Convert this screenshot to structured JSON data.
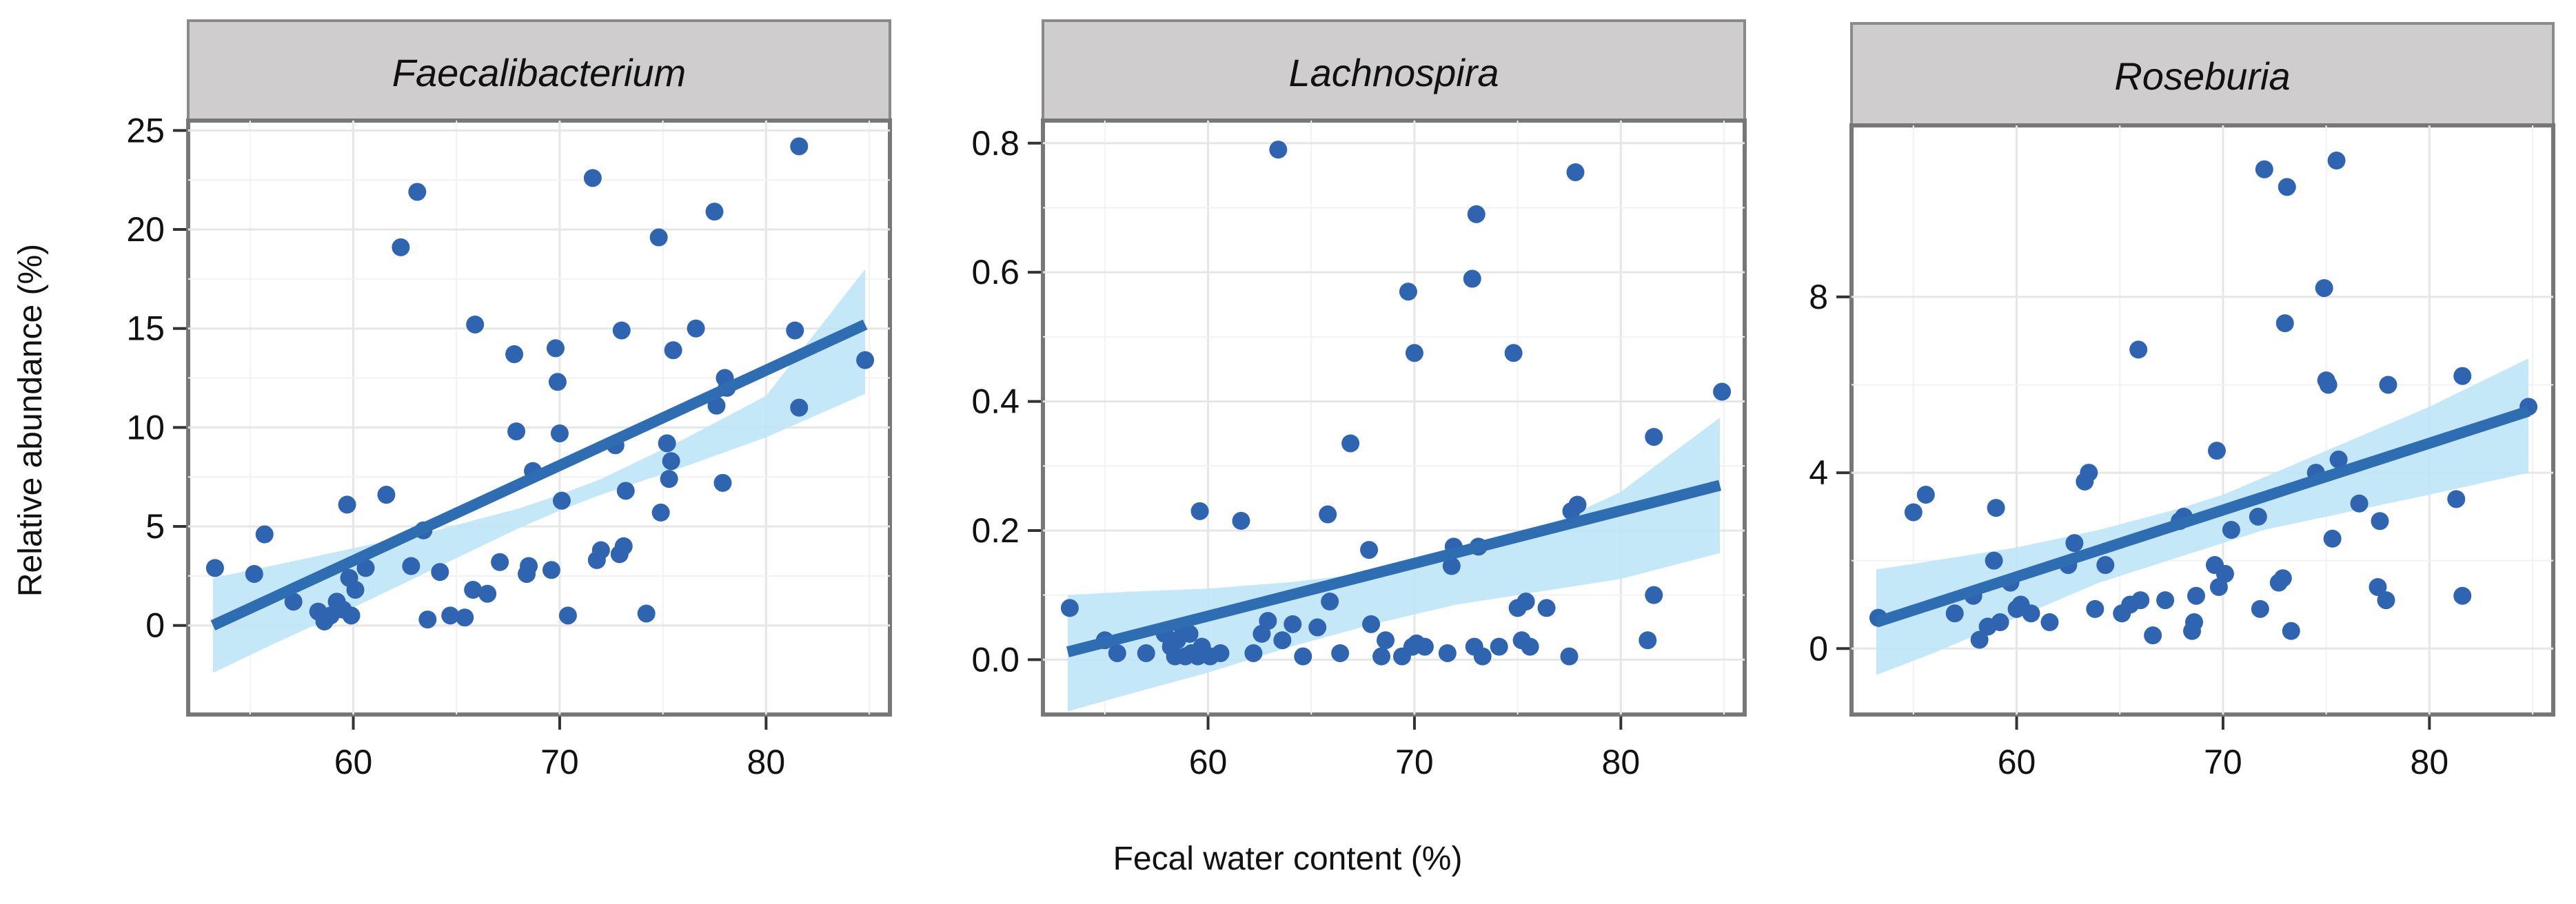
{
  "chart_data": {
    "type": "scatter",
    "xlabel": "Fecal water content (%)",
    "ylabel": "Relative abundance (%)",
    "panels": [
      {
        "title": "Faecalibacterium",
        "xlim": [
          52,
          86
        ],
        "ylim": [
          -4.5,
          25.5
        ],
        "xticks": [
          60,
          70,
          80
        ],
        "yticks": [
          0,
          5,
          10,
          15,
          20,
          25
        ],
        "fit": {
          "x": [
            53.2,
            84.8
          ],
          "y": [
            0.0,
            15.2
          ]
        },
        "band": {
          "x": [
            53.2,
            56,
            60,
            64,
            68,
            70,
            72,
            76,
            80,
            84.8
          ],
          "lower": [
            -2.4,
            -1.0,
            0.9,
            2.9,
            4.9,
            5.8,
            6.6,
            8.0,
            9.5,
            11.7
          ],
          "upper": [
            2.4,
            3.0,
            3.9,
            4.8,
            5.9,
            6.6,
            7.4,
            9.4,
            11.6,
            18.0
          ]
        },
        "points": [
          [
            53.3,
            2.9
          ],
          [
            55.2,
            2.6
          ],
          [
            55.7,
            4.6
          ],
          [
            57.1,
            1.2
          ],
          [
            58.3,
            0.7
          ],
          [
            58.6,
            0.2
          ],
          [
            58.9,
            0.5
          ],
          [
            59.2,
            1.2
          ],
          [
            59.5,
            0.8
          ],
          [
            59.7,
            6.1
          ],
          [
            59.8,
            2.4
          ],
          [
            59.9,
            0.5
          ],
          [
            60.1,
            1.8
          ],
          [
            60.6,
            2.9
          ],
          [
            61.6,
            6.6
          ],
          [
            62.3,
            19.1
          ],
          [
            62.8,
            3.0
          ],
          [
            63.1,
            21.9
          ],
          [
            63.4,
            4.8
          ],
          [
            63.6,
            0.3
          ],
          [
            64.2,
            2.7
          ],
          [
            64.7,
            0.5
          ],
          [
            65.4,
            0.4
          ],
          [
            65.8,
            1.8
          ],
          [
            65.9,
            15.2
          ],
          [
            66.5,
            1.6
          ],
          [
            67.1,
            3.2
          ],
          [
            67.8,
            13.7
          ],
          [
            67.9,
            9.8
          ],
          [
            68.4,
            2.6
          ],
          [
            68.5,
            3.0
          ],
          [
            68.7,
            7.8
          ],
          [
            69.6,
            2.8
          ],
          [
            69.8,
            14.0
          ],
          [
            69.9,
            12.3
          ],
          [
            70.0,
            9.7
          ],
          [
            70.1,
            6.3
          ],
          [
            70.4,
            0.5
          ],
          [
            71.6,
            22.6
          ],
          [
            71.8,
            3.3
          ],
          [
            72.0,
            3.8
          ],
          [
            72.7,
            9.1
          ],
          [
            72.9,
            3.6
          ],
          [
            73.0,
            14.9
          ],
          [
            73.1,
            4.0
          ],
          [
            73.2,
            6.8
          ],
          [
            74.2,
            0.6
          ],
          [
            74.8,
            19.6
          ],
          [
            74.9,
            5.7
          ],
          [
            75.2,
            9.2
          ],
          [
            75.3,
            7.4
          ],
          [
            75.4,
            8.3
          ],
          [
            75.5,
            13.9
          ],
          [
            76.6,
            15.0
          ],
          [
            77.5,
            20.9
          ],
          [
            77.6,
            11.1
          ],
          [
            77.9,
            7.2
          ],
          [
            78.0,
            12.5
          ],
          [
            78.1,
            12.0
          ],
          [
            81.4,
            14.9
          ],
          [
            81.6,
            24.2
          ],
          [
            81.6,
            11.0
          ],
          [
            84.8,
            13.4
          ]
        ]
      },
      {
        "title": "Lachnospira",
        "xlim": [
          52,
          86
        ],
        "ylim": [
          -0.085,
          0.835
        ],
        "xticks": [
          60,
          70,
          80
        ],
        "yticks": [
          0.0,
          0.2,
          0.4,
          0.6,
          0.8
        ],
        "ytick_labels": [
          "0.0",
          "0.2",
          "0.4",
          "0.6",
          "0.8"
        ],
        "fit": {
          "x": [
            53.2,
            84.8
          ],
          "y": [
            0.012,
            0.27
          ]
        },
        "band": {
          "x": [
            53.2,
            56,
            60,
            64,
            68,
            70,
            72,
            76,
            80,
            84.8
          ],
          "lower": [
            -0.08,
            -0.055,
            -0.02,
            0.02,
            0.055,
            0.07,
            0.085,
            0.105,
            0.125,
            0.165
          ],
          "upper": [
            0.1,
            0.105,
            0.11,
            0.12,
            0.135,
            0.145,
            0.16,
            0.2,
            0.26,
            0.375
          ]
        },
        "points": [
          [
            53.3,
            0.08
          ],
          [
            55.0,
            0.03
          ],
          [
            55.6,
            0.01
          ],
          [
            57.0,
            0.01
          ],
          [
            57.9,
            0.04
          ],
          [
            58.2,
            0.02
          ],
          [
            58.4,
            0.005
          ],
          [
            58.5,
            0.03
          ],
          [
            58.8,
            0.045
          ],
          [
            58.9,
            0.005
          ],
          [
            59.1,
            0.04
          ],
          [
            59.2,
            0.01
          ],
          [
            59.5,
            0.005
          ],
          [
            59.6,
            0.23
          ],
          [
            59.7,
            0.02
          ],
          [
            60.1,
            0.005
          ],
          [
            60.6,
            0.01
          ],
          [
            61.6,
            0.215
          ],
          [
            62.2,
            0.01
          ],
          [
            62.6,
            0.04
          ],
          [
            62.9,
            0.06
          ],
          [
            63.4,
            0.79
          ],
          [
            63.6,
            0.03
          ],
          [
            64.1,
            0.055
          ],
          [
            64.6,
            0.005
          ],
          [
            65.3,
            0.05
          ],
          [
            65.8,
            0.225
          ],
          [
            65.9,
            0.09
          ],
          [
            66.4,
            0.01
          ],
          [
            66.9,
            0.335
          ],
          [
            67.8,
            0.17
          ],
          [
            67.9,
            0.055
          ],
          [
            68.4,
            0.005
          ],
          [
            68.6,
            0.03
          ],
          [
            69.4,
            0.005
          ],
          [
            69.7,
            0.57
          ],
          [
            69.9,
            0.02
          ],
          [
            70.0,
            0.475
          ],
          [
            70.1,
            0.025
          ],
          [
            70.5,
            0.02
          ],
          [
            71.6,
            0.01
          ],
          [
            71.8,
            0.145
          ],
          [
            71.9,
            0.175
          ],
          [
            72.8,
            0.59
          ],
          [
            72.9,
            0.02
          ],
          [
            73.0,
            0.69
          ],
          [
            73.1,
            0.175
          ],
          [
            73.3,
            0.005
          ],
          [
            74.1,
            0.02
          ],
          [
            74.8,
            0.475
          ],
          [
            75.0,
            0.08
          ],
          [
            75.2,
            0.03
          ],
          [
            75.4,
            0.09
          ],
          [
            75.6,
            0.02
          ],
          [
            76.4,
            0.08
          ],
          [
            77.5,
            0.005
          ],
          [
            77.6,
            0.23
          ],
          [
            77.8,
            0.755
          ],
          [
            77.9,
            0.24
          ],
          [
            81.3,
            0.03
          ],
          [
            81.6,
            0.345
          ],
          [
            81.6,
            0.1
          ],
          [
            84.9,
            0.415
          ]
        ]
      },
      {
        "title": "Roseburia",
        "xlim": [
          52,
          86
        ],
        "ylim": [
          -1.5,
          11.9
        ],
        "xticks": [
          60,
          70,
          80
        ],
        "yticks": [
          0,
          4,
          8
        ],
        "fit": {
          "x": [
            53.2,
            84.8
          ],
          "y": [
            0.6,
            5.4
          ]
        },
        "band": {
          "x": [
            53.2,
            56,
            60,
            64,
            68,
            70,
            72,
            76,
            80,
            84.8
          ],
          "lower": [
            -0.6,
            -0.1,
            0.7,
            1.5,
            2.1,
            2.4,
            2.7,
            3.1,
            3.5,
            4.0
          ],
          "upper": [
            1.8,
            2.0,
            2.3,
            2.7,
            3.2,
            3.5,
            3.9,
            4.7,
            5.5,
            6.6
          ]
        },
        "points": [
          [
            53.3,
            0.7
          ],
          [
            55.0,
            3.1
          ],
          [
            55.6,
            3.5
          ],
          [
            57.0,
            0.8
          ],
          [
            57.9,
            1.2
          ],
          [
            58.2,
            0.2
          ],
          [
            58.6,
            0.5
          ],
          [
            58.9,
            2.0
          ],
          [
            59.0,
            3.2
          ],
          [
            59.2,
            0.6
          ],
          [
            59.7,
            1.5
          ],
          [
            60.0,
            0.9
          ],
          [
            60.2,
            1.0
          ],
          [
            60.7,
            0.8
          ],
          [
            61.6,
            0.6
          ],
          [
            62.5,
            1.9
          ],
          [
            62.8,
            2.4
          ],
          [
            63.3,
            3.8
          ],
          [
            63.5,
            4.0
          ],
          [
            63.8,
            0.9
          ],
          [
            64.3,
            1.9
          ],
          [
            65.1,
            0.8
          ],
          [
            65.5,
            1.0
          ],
          [
            65.9,
            6.8
          ],
          [
            66.0,
            1.1
          ],
          [
            66.6,
            0.3
          ],
          [
            67.2,
            1.1
          ],
          [
            67.9,
            2.9
          ],
          [
            68.1,
            3.0
          ],
          [
            68.5,
            0.4
          ],
          [
            68.6,
            0.6
          ],
          [
            68.7,
            1.2
          ],
          [
            69.6,
            1.9
          ],
          [
            69.7,
            4.5
          ],
          [
            69.8,
            1.4
          ],
          [
            70.1,
            1.7
          ],
          [
            70.4,
            2.7
          ],
          [
            71.7,
            3.0
          ],
          [
            71.8,
            0.9
          ],
          [
            72.0,
            10.9
          ],
          [
            72.7,
            1.5
          ],
          [
            72.9,
            1.6
          ],
          [
            73.0,
            7.4
          ],
          [
            73.1,
            10.5
          ],
          [
            73.3,
            0.4
          ],
          [
            74.5,
            4.0
          ],
          [
            74.9,
            8.2
          ],
          [
            75.0,
            6.1
          ],
          [
            75.1,
            6.0
          ],
          [
            75.3,
            2.5
          ],
          [
            75.5,
            11.1
          ],
          [
            75.6,
            4.3
          ],
          [
            76.6,
            3.3
          ],
          [
            77.5,
            1.4
          ],
          [
            77.6,
            2.9
          ],
          [
            77.9,
            1.1
          ],
          [
            78.0,
            6.0
          ],
          [
            81.3,
            3.4
          ],
          [
            81.6,
            6.2
          ],
          [
            81.6,
            1.2
          ],
          [
            84.8,
            5.5
          ]
        ]
      }
    ]
  }
}
